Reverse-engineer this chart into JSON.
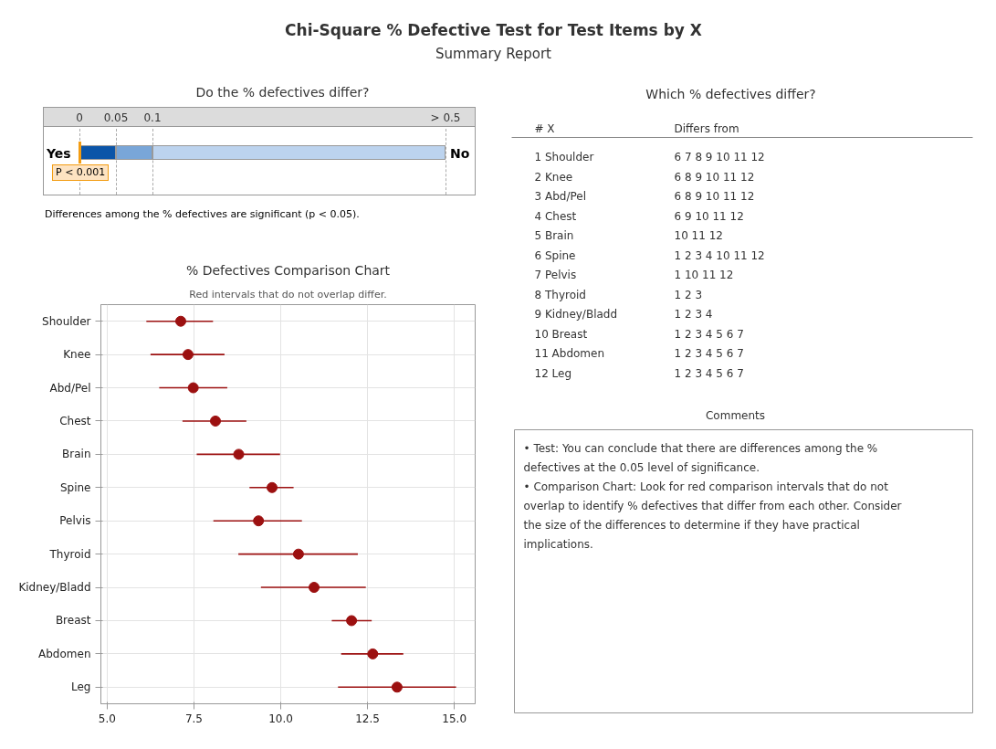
{
  "chart_data": [
    {
      "type": "other",
      "title": "Chi-Square % Defective Test for Test Items by X",
      "subtitle": "Summary Report"
    },
    {
      "type": "other",
      "title": "Do the % defectives differ?",
      "annotations": [
        "0",
        "0.05",
        "0.1",
        "> 0.5",
        "Yes",
        "No",
        "P < 0.001",
        "Differences among the % defectives are significant (p < 0.05)."
      ],
      "colors": [
        "#0b55a8",
        "#79a6d8",
        "#bcd3ee"
      ]
    },
    {
      "type": "scatter",
      "title": "% Defectives Comparison Chart",
      "subtitle": "Red intervals that do not overlap differ.",
      "orientation": "horizontal",
      "categories": [
        "Shoulder",
        "Knee",
        "Abd/Pel",
        "Chest",
        "Brain",
        "Spine",
        "Pelvis",
        "Thyroid",
        "Kidney/Bladd",
        "Breast",
        "Abdomen",
        "Leg"
      ],
      "series": [
        {
          "color": "#9c1010",
          "values": [
            7.12,
            7.33,
            7.48,
            8.12,
            8.79,
            9.75,
            9.36,
            10.51,
            10.96,
            12.04,
            12.65,
            13.35
          ],
          "errors": [
            [
              6.13,
              8.05
            ],
            [
              6.25,
              8.38
            ],
            [
              6.5,
              8.46
            ],
            [
              7.17,
              9.01
            ],
            [
              7.58,
              9.98
            ],
            [
              9.1,
              10.37
            ],
            [
              8.06,
              10.61
            ],
            [
              8.78,
              12.22
            ],
            [
              9.43,
              12.45
            ],
            [
              11.47,
              12.62
            ],
            [
              11.74,
              13.53
            ],
            [
              11.65,
              15.05
            ]
          ]
        }
      ],
      "xlim": [
        4.82,
        15.6
      ],
      "xticks": [
        {
          "value": 5,
          "label": "5.0"
        },
        7.5,
        {
          "value": 10,
          "label": "10.0"
        },
        12.5,
        {
          "value": 15,
          "label": "15.0"
        }
      ],
      "grid": true,
      "marker": "circle"
    },
    {
      "type": "other",
      "title": "Which % defectives differ?",
      "annotations": [
        "#",
        "X",
        "Differs from",
        "1",
        "Shoulder",
        "6   7   8   9   10   11   12",
        "2",
        "Knee",
        "6   8   9   10   11   12",
        "3",
        "Abd/Pel",
        "6   8   9   10   11   12",
        "4",
        "Chest",
        "6   9   10   11   12",
        "5",
        "Brain",
        "10   11   12",
        "6",
        "Spine",
        "1   2   3   4   10   11   12",
        "7",
        "Pelvis",
        "1   10   11   12",
        "8",
        "Thyroid",
        "1   2   3",
        "9",
        "Kidney/Bladd",
        "1   2   3   4",
        "10",
        "Breast",
        "1   2   3   4   5   6   7",
        "11",
        "Abdomen",
        "1   2   3   4   5   6   7",
        "12",
        "Leg",
        "1   2   3   4   5   6   7"
      ]
    },
    {
      "type": "other",
      "title": "Comments",
      "annotations": [
        "• Test: You can conclude that there are differences among the % defectives at the 0.05 level of significance.",
        "• Comparison Chart: Look for red comparison intervals that do not overlap to identify % defectives that differ from each other. Consider the size of the differences to determine if they have practical implications."
      ]
    }
  ]
}
